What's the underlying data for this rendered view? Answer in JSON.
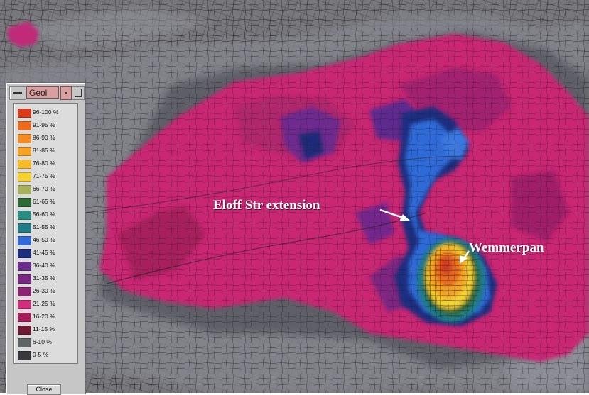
{
  "window": {
    "title": "Geol",
    "close_label": "Close"
  },
  "legend": [
    {
      "label": "96-100 %",
      "color": "#d83a1a"
    },
    {
      "label": "91-95 %",
      "color": "#ef6a1d"
    },
    {
      "label": "86-90 %",
      "color": "#f48a22"
    },
    {
      "label": "81-85 %",
      "color": "#f6a224"
    },
    {
      "label": "76-80 %",
      "color": "#f7bb28"
    },
    {
      "label": "71-75 %",
      "color": "#f6d22e"
    },
    {
      "label": "66-70 %",
      "color": "#a9b05a"
    },
    {
      "label": "61-65 %",
      "color": "#2d6a36"
    },
    {
      "label": "56-60 %",
      "color": "#2b8c84"
    },
    {
      "label": "51-55 %",
      "color": "#1e7d87"
    },
    {
      "label": "46-50 %",
      "color": "#2f6ad8"
    },
    {
      "label": "41-45 %",
      "color": "#1c2f7c"
    },
    {
      "label": "36-40 %",
      "color": "#6b2d8c"
    },
    {
      "label": "31-35 %",
      "color": "#7a2784"
    },
    {
      "label": "26-30 %",
      "color": "#8b2573"
    },
    {
      "label": "21-25 %",
      "color": "#cf2f7c"
    },
    {
      "label": "16-20 %",
      "color": "#a41f58"
    },
    {
      "label": "11-15 %",
      "color": "#6e1a34"
    },
    {
      "label": "6-10 %",
      "color": "#5f6566"
    },
    {
      "label": "0-5 %",
      "color": "#37393c"
    }
  ],
  "annotations": {
    "eloff": "Eloff Str extension",
    "wemmerpan": "Wemmerpan"
  }
}
